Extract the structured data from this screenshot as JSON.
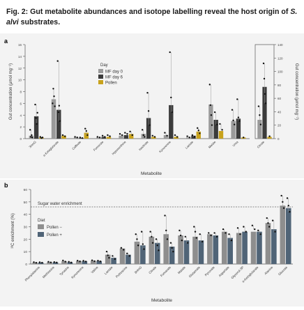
{
  "caption": {
    "prefix": "Fig. 2: Gut metabolite abundances and isotope labelling reveal the host origin of",
    "species": "S. alvi",
    "suffix": "substrates."
  },
  "colors": {
    "background": "#f2f2f2",
    "mf_day0": "#9a9a9a",
    "mf_day6": "#3b3b3b",
    "pollen": "#c8a21c",
    "pollen_minus": "#8e8e8e",
    "pollen_plus": "#506477",
    "points": "#111111",
    "threshold_line": "#666666"
  },
  "chart_data": [
    {
      "panel": "a",
      "type": "bar",
      "ylabel": "Gut concentration (μmol mg⁻¹)",
      "xlabel": "Metabolite",
      "ylim": [
        0,
        16
      ],
      "yticks": [
        "0",
        "2",
        "4",
        "6",
        "8",
        "10",
        "12",
        "14",
        "16"
      ],
      "y2label": "Gut concentration (μmol mg⁻¹)",
      "y2lim": [
        0,
        140
      ],
      "y2ticks": [
        "0",
        "20",
        "40",
        "60",
        "80",
        "100",
        "120",
        "140"
      ],
      "legend": {
        "title": "Day",
        "entries": [
          "MF day 0",
          "MF day 6",
          "Pollen"
        ],
        "position": "top-center"
      },
      "categories": [
        "3HmG",
        "α-Ketoglutarate",
        "Caffeate",
        "Fumarate",
        "Hypoxanthine",
        "Isocitrate",
        "Kynurenine",
        "Lactate",
        "Malate",
        "Urea"
      ],
      "series": [
        {
          "name": "MF day 0",
          "values": [
            0.5,
            6.7,
            0.2,
            0.2,
            0.5,
            0.8,
            0.6,
            0.2,
            5.8,
            3.0
          ]
        },
        {
          "name": "MF day 6",
          "values": [
            3.8,
            4.9,
            0.1,
            0.3,
            0.6,
            3.5,
            5.7,
            0.5,
            3.2,
            3.4
          ]
        },
        {
          "name": "Pollen",
          "values": [
            0.2,
            0.5,
            1.0,
            0.3,
            0.8,
            0.3,
            0.3,
            1.2,
            1.3,
            0.2
          ]
        }
      ],
      "points": [
        [
          [
            1.5,
            0.3,
            0.6,
            0.2
          ],
          [
            5.8,
            3.5,
            2.5,
            4.4
          ],
          [
            0.3,
            0.1,
            0.2
          ]
        ],
        [
          [
            6.0,
            8.5,
            7.2,
            5.5
          ],
          [
            13.2,
            4.5,
            5.6,
            3.0
          ],
          [
            0.6,
            0.4
          ]
        ],
        [
          [
            0.3,
            0.2
          ],
          [
            0.2,
            0.1
          ],
          [
            1.7,
            1.3,
            0.6
          ]
        ],
        [
          [
            0.3,
            0.2
          ],
          [
            0.5,
            0.3
          ],
          [
            0.6,
            0.4
          ]
        ],
        [
          [
            0.8,
            0.6
          ],
          [
            1.0,
            0.8
          ],
          [
            1.2,
            0.6
          ]
        ],
        [
          [
            1.5,
            0.6,
            0.3
          ],
          [
            7.8,
            4.7,
            2.3
          ],
          [
            0.5,
            0.3
          ]
        ],
        [
          [
            1.0,
            0.5
          ],
          [
            14.7,
            7.0,
            4.5
          ],
          [
            0.6,
            0.3
          ]
        ],
        [
          [
            0.4,
            0.2
          ],
          [
            0.6,
            0.3
          ],
          [
            1.8,
            1.4,
            0.9
          ]
        ],
        [
          [
            9.2,
            5.7,
            4.0,
            2.3
          ],
          [
            4.5,
            2.4
          ],
          [
            2.5,
            1.5
          ]
        ],
        [
          [
            4.9,
            3.1,
            2.4
          ],
          [
            6.7,
            3.6,
            3.0
          ],
          [
            0.2
          ]
        ]
      ],
      "inset": {
        "category": "Citrate",
        "series": [
          {
            "name": "MF day 0",
            "values": [
              3.2
            ]
          },
          {
            "name": "MF day 6",
            "values": [
              8.8
            ]
          },
          {
            "name": "Pollen",
            "values": [
              0.3
            ]
          }
        ],
        "points": [
          [
            [
              5.5,
              4.0,
              2.4
            ],
            [
              12.8,
              10.2,
              7.6,
              6.0
            ],
            [
              0.4
            ]
          ]
        ]
      }
    },
    {
      "panel": "b",
      "type": "bar",
      "ylabel": "¹³C enrichment (%)",
      "xlabel": "Metabolite",
      "ylim": [
        0,
        60
      ],
      "yticks": [
        "0",
        "10",
        "20",
        "30",
        "40",
        "50",
        "60"
      ],
      "threshold": {
        "label": "Sugar water enrichment",
        "value": 46
      },
      "legend": {
        "title": "Diet",
        "entries": [
          "Pollen −",
          "Pollen +"
        ],
        "position": "top-left"
      },
      "categories": [
        "Phenylalanine",
        "Methionine",
        "Tyrosine",
        "Kynurenine",
        "Valine",
        "Lactate",
        "Putrescine",
        "3HmG",
        "Citrate",
        "Fumarate",
        "Malate",
        "Glutamate",
        "Pyruvate",
        "Aspartate",
        "Glycerol-3P",
        "α-Ketoglutarate",
        "Alanine",
        "Glucose"
      ],
      "series": [
        {
          "name": "Pollen −",
          "values": [
            1.2,
            1.5,
            2.2,
            2.4,
            2.6,
            7.5,
            12.5,
            18.0,
            22.0,
            24.0,
            23.0,
            22.0,
            24.0,
            26.0,
            25.0,
            26.0,
            33.0,
            47.0
          ]
        },
        {
          "name": "Pollen +",
          "values": [
            1.2,
            1.4,
            1.5,
            2.3,
            2.4,
            5.0,
            7.5,
            15.0,
            17.0,
            14.0,
            19.0,
            19.0,
            23.0,
            21.0,
            26.0,
            26.0,
            28.0,
            45.0
          ]
        }
      ],
      "points": [
        [
          [
            1.5,
            1.0
          ],
          [
            1.4,
            1.1
          ]
        ],
        [
          [
            1.8,
            1.3
          ],
          [
            1.6,
            1.2
          ]
        ],
        [
          [
            2.8,
            1.9
          ],
          [
            1.8,
            1.2
          ]
        ],
        [
          [
            2.7,
            2.1
          ],
          [
            2.6,
            2.0
          ]
        ],
        [
          [
            3.0,
            2.3
          ],
          [
            2.7,
            2.1
          ]
        ],
        [
          [
            10.0,
            7.0,
            5.0
          ],
          [
            6.5,
            4.0
          ]
        ],
        [
          [
            13.0,
            11.5
          ],
          [
            8.5,
            6.5
          ]
        ],
        [
          [
            24.0,
            20.0,
            15.0
          ],
          [
            26.0,
            16.0,
            12.0
          ]
        ],
        [
          [
            26.0,
            22.0,
            17.0
          ],
          [
            20.0,
            15.0,
            11.0
          ]
        ],
        [
          [
            39.0,
            27.0,
            20.0
          ],
          [
            17.0,
            13.0,
            10.0
          ]
        ],
        [
          [
            27.0,
            23.0,
            19.0
          ],
          [
            22.0,
            17.0
          ]
        ],
        [
          [
            30.0,
            26.0,
            21.0
          ],
          [
            24.0,
            18.0
          ]
        ],
        [
          [
            25.0,
            23.0
          ],
          [
            25.0,
            22.0
          ]
        ],
        [
          [
            28.0,
            25.0
          ],
          [
            24.0,
            19.0
          ]
        ],
        [
          [
            29.0,
            24.0
          ],
          [
            30.0,
            26.0
          ]
        ],
        [
          [
            31.0,
            28.0
          ],
          [
            27.0,
            24.0
          ]
        ],
        [
          [
            37.0,
            33.0,
            30.0
          ],
          [
            35.0,
            26.0
          ]
        ],
        [
          [
            55.0,
            50.0,
            45.0
          ],
          [
            53.0,
            47.0,
            42.0
          ]
        ]
      ]
    }
  ]
}
